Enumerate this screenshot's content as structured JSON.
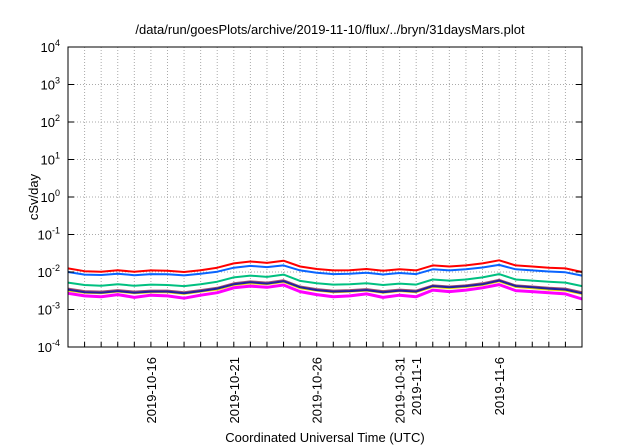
{
  "chart_data": {
    "type": "line",
    "title": "/data/run/goesPlots/archive/2019-11-10/flux/../bryn/31daysMars.plot",
    "xlabel": "Coordinated Universal Time (UTC)",
    "ylabel": "cSv/day",
    "yscale": "log",
    "ylim": [
      0.0001,
      10000
    ],
    "xlim": [
      "2019-10-11",
      "2019-11-11"
    ],
    "grid": true,
    "legend": "none",
    "y_ticks": [
      {
        "base": "10",
        "exp": "-4"
      },
      {
        "base": "10",
        "exp": "-3"
      },
      {
        "base": "10",
        "exp": "-2"
      },
      {
        "base": "10",
        "exp": "-1"
      },
      {
        "base": "10",
        "exp": "0"
      },
      {
        "base": "10",
        "exp": "1"
      },
      {
        "base": "10",
        "exp": "2"
      },
      {
        "base": "10",
        "exp": "3"
      },
      {
        "base": "10",
        "exp": "4"
      }
    ],
    "x_tick_labels": [
      {
        "label": "2019-10-16",
        "day": 5
      },
      {
        "label": "2019-10-21",
        "day": 10
      },
      {
        "label": "2019-10-26",
        "day": 15
      },
      {
        "label": "2019-10-31",
        "day": 20
      },
      {
        "label": "2019-11-1",
        "day": 21
      },
      {
        "label": "2019-11-6",
        "day": 26
      }
    ],
    "x_days": [
      0,
      1,
      2,
      3,
      4,
      5,
      6,
      7,
      8,
      9,
      10,
      11,
      12,
      13,
      14,
      15,
      16,
      17,
      18,
      19,
      20,
      21,
      22,
      23,
      24,
      25,
      26,
      27,
      28,
      29,
      30,
      31
    ],
    "series": [
      {
        "name": "red",
        "color": "#ff0000",
        "values": [
          0.0125,
          0.0105,
          0.0102,
          0.0112,
          0.0101,
          0.011,
          0.0108,
          0.01,
          0.0112,
          0.013,
          0.017,
          0.019,
          0.0175,
          0.02,
          0.014,
          0.012,
          0.011,
          0.0112,
          0.012,
          0.0108,
          0.0118,
          0.011,
          0.015,
          0.014,
          0.015,
          0.017,
          0.0205,
          0.015,
          0.014,
          0.013,
          0.0125,
          0.01
        ]
      },
      {
        "name": "blue",
        "color": "#0a64ff",
        "values": [
          0.01,
          0.0085,
          0.0083,
          0.009,
          0.0082,
          0.0088,
          0.0087,
          0.0081,
          0.009,
          0.0102,
          0.013,
          0.0145,
          0.0135,
          0.015,
          0.011,
          0.0096,
          0.0088,
          0.009,
          0.0095,
          0.0086,
          0.0094,
          0.0088,
          0.0118,
          0.011,
          0.0118,
          0.0132,
          0.0155,
          0.0118,
          0.011,
          0.0103,
          0.0098,
          0.008
        ]
      },
      {
        "name": "green",
        "color": "#00c080",
        "values": [
          0.0052,
          0.0045,
          0.0043,
          0.0047,
          0.0043,
          0.0046,
          0.0045,
          0.0042,
          0.0047,
          0.0055,
          0.0072,
          0.008,
          0.0074,
          0.0085,
          0.0058,
          0.005,
          0.0046,
          0.0047,
          0.005,
          0.0045,
          0.0049,
          0.0046,
          0.0063,
          0.0059,
          0.0063,
          0.0072,
          0.0088,
          0.0063,
          0.0059,
          0.0055,
          0.0052,
          0.0042
        ]
      },
      {
        "name": "brown",
        "color": "#a05070",
        "values": [
          0.0036,
          0.0031,
          0.003,
          0.0033,
          0.003,
          0.0032,
          0.0032,
          0.0029,
          0.0033,
          0.0038,
          0.005,
          0.0056,
          0.0052,
          0.006,
          0.0041,
          0.0035,
          0.0032,
          0.0033,
          0.0035,
          0.0031,
          0.0034,
          0.0032,
          0.0044,
          0.0041,
          0.0044,
          0.005,
          0.0062,
          0.0044,
          0.0041,
          0.0038,
          0.0036,
          0.0029
        ]
      },
      {
        "name": "yellow",
        "color": "#f0e000",
        "values": [
          0.0032,
          0.0028,
          0.0027,
          0.003,
          0.0027,
          0.0029,
          0.0029,
          0.0026,
          0.003,
          0.0034,
          0.0045,
          0.005,
          0.0047,
          0.0054,
          0.0037,
          0.0032,
          0.0029,
          0.003,
          0.0032,
          0.0028,
          0.0031,
          0.0029,
          0.004,
          0.0037,
          0.004,
          0.0045,
          0.0056,
          0.004,
          0.0037,
          0.0034,
          0.0032,
          0.0026
        ]
      },
      {
        "name": "navy",
        "color": "#2020a0",
        "values": [
          0.0034,
          0.0029,
          0.0028,
          0.0031,
          0.0028,
          0.003,
          0.003,
          0.0027,
          0.0031,
          0.0036,
          0.0047,
          0.0053,
          0.0049,
          0.0057,
          0.0039,
          0.0033,
          0.003,
          0.0031,
          0.0033,
          0.0029,
          0.0032,
          0.003,
          0.0042,
          0.0039,
          0.0042,
          0.0047,
          0.0059,
          0.0042,
          0.0039,
          0.0036,
          0.0034,
          0.0027
        ]
      },
      {
        "name": "magenta",
        "color": "#ff00ff",
        "values": [
          0.0027,
          0.0023,
          0.0022,
          0.0025,
          0.0021,
          0.0024,
          0.0023,
          0.002,
          0.0024,
          0.0028,
          0.0038,
          0.0042,
          0.0039,
          0.0045,
          0.003,
          0.0025,
          0.0022,
          0.0023,
          0.0026,
          0.0021,
          0.0024,
          0.0022,
          0.0033,
          0.003,
          0.0033,
          0.0038,
          0.0046,
          0.0032,
          0.003,
          0.0028,
          0.0026,
          0.0019
        ]
      }
    ]
  }
}
